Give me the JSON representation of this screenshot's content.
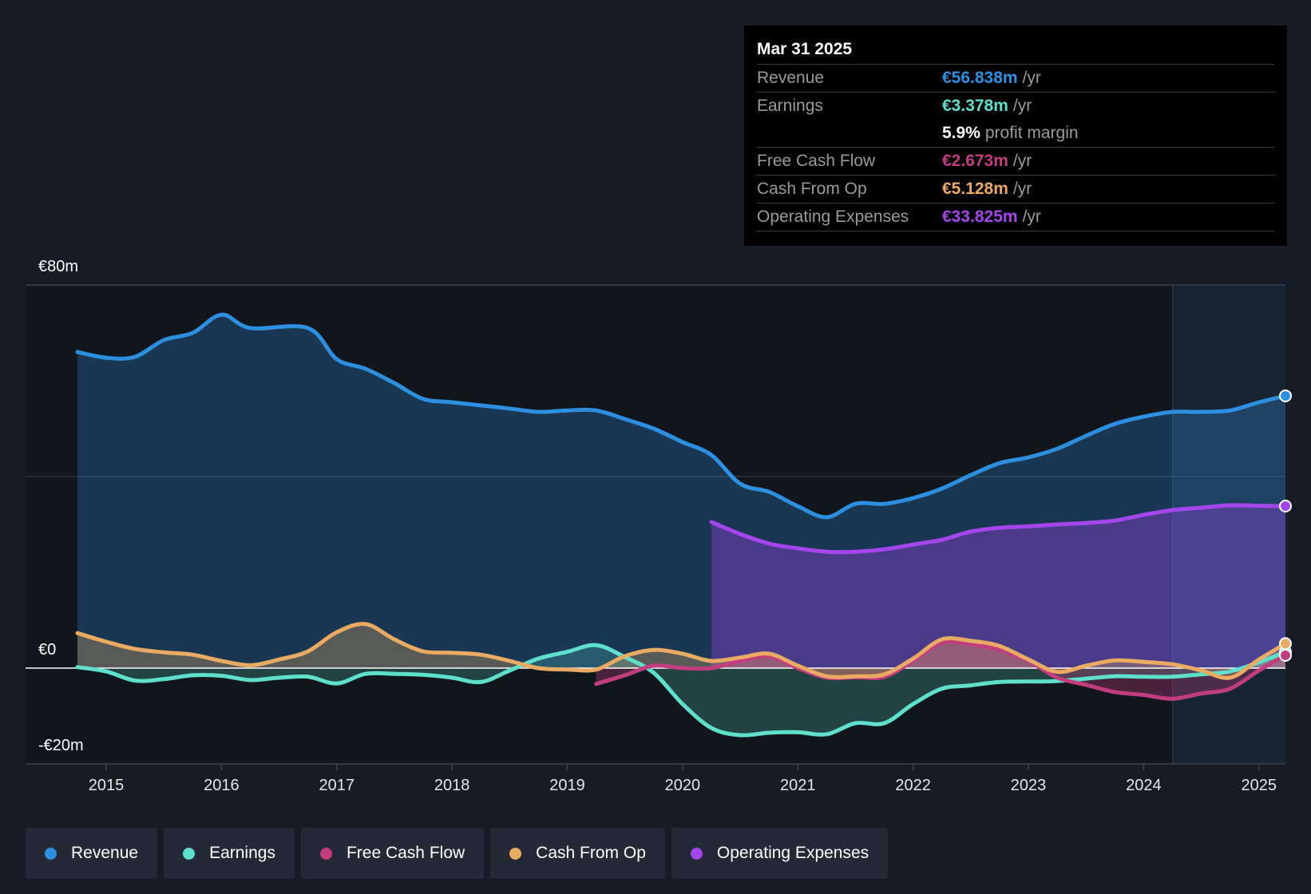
{
  "chart_data": {
    "type": "area",
    "currency_axis_labels": {
      "top": "€80m",
      "zero": "€0",
      "bottom": "-€20m"
    },
    "ylim": [
      -20,
      80
    ],
    "x_range": [
      2014.3,
      2025.23
    ],
    "x_ticks": [
      "2015",
      "2016",
      "2017",
      "2018",
      "2019",
      "2020",
      "2021",
      "2022",
      "2023",
      "2024",
      "2025"
    ],
    "highlight_from": 2024.25,
    "series": [
      {
        "name": "Revenue",
        "color": "#2d8fdf",
        "fill": true,
        "points": [
          [
            2014.75,
            66
          ],
          [
            2015.0,
            64.8
          ],
          [
            2015.25,
            65
          ],
          [
            2015.5,
            68.5
          ],
          [
            2015.75,
            70
          ],
          [
            2016.0,
            73.8
          ],
          [
            2016.25,
            71
          ],
          [
            2016.75,
            71
          ],
          [
            2017.0,
            64.5
          ],
          [
            2017.25,
            62.5
          ],
          [
            2017.5,
            59.5
          ],
          [
            2017.75,
            56.2
          ],
          [
            2018.0,
            55.5
          ],
          [
            2018.5,
            54.2
          ],
          [
            2018.75,
            53.5
          ],
          [
            2019.0,
            53.8
          ],
          [
            2019.25,
            53.8
          ],
          [
            2019.5,
            52
          ],
          [
            2019.75,
            50
          ],
          [
            2020.0,
            47.2
          ],
          [
            2020.25,
            44.5
          ],
          [
            2020.5,
            38.5
          ],
          [
            2020.75,
            36.8
          ],
          [
            2021.0,
            33.8
          ],
          [
            2021.25,
            31.5
          ],
          [
            2021.5,
            34.3
          ],
          [
            2021.75,
            34.3
          ],
          [
            2022.0,
            35.5
          ],
          [
            2022.25,
            37.5
          ],
          [
            2022.5,
            40.3
          ],
          [
            2022.75,
            42.8
          ],
          [
            2023.0,
            44
          ],
          [
            2023.25,
            45.8
          ],
          [
            2023.5,
            48.5
          ],
          [
            2023.75,
            51
          ],
          [
            2024.0,
            52.5
          ],
          [
            2024.25,
            53.5
          ],
          [
            2024.5,
            53.5
          ],
          [
            2024.75,
            53.8
          ],
          [
            2025.0,
            55.5
          ],
          [
            2025.23,
            56.84
          ]
        ]
      },
      {
        "name": "Operating Expenses",
        "color": "#a446ec",
        "fill": true,
        "points": [
          [
            2020.25,
            30.5
          ],
          [
            2020.5,
            28
          ],
          [
            2020.75,
            26
          ],
          [
            2021.0,
            25
          ],
          [
            2021.25,
            24.3
          ],
          [
            2021.5,
            24.3
          ],
          [
            2021.75,
            24.8
          ],
          [
            2022.0,
            25.8
          ],
          [
            2022.25,
            26.8
          ],
          [
            2022.5,
            28.5
          ],
          [
            2022.75,
            29.3
          ],
          [
            2023.0,
            29.6
          ],
          [
            2023.25,
            30
          ],
          [
            2023.5,
            30.3
          ],
          [
            2023.75,
            30.8
          ],
          [
            2024.0,
            32
          ],
          [
            2024.25,
            33
          ],
          [
            2024.5,
            33.5
          ],
          [
            2024.75,
            34
          ],
          [
            2025.0,
            33.9
          ],
          [
            2025.23,
            33.83
          ]
        ]
      },
      {
        "name": "Earnings",
        "color": "#5ee0cc",
        "fill": true,
        "points": [
          [
            2014.75,
            0.2
          ],
          [
            2015.0,
            -0.7
          ],
          [
            2015.25,
            -2.6
          ],
          [
            2015.5,
            -2.3
          ],
          [
            2015.75,
            -1.5
          ],
          [
            2016.0,
            -1.6
          ],
          [
            2016.25,
            -2.5
          ],
          [
            2016.5,
            -2
          ],
          [
            2016.75,
            -1.8
          ],
          [
            2017.0,
            -3.2
          ],
          [
            2017.25,
            -1.2
          ],
          [
            2017.5,
            -1.2
          ],
          [
            2017.75,
            -1.4
          ],
          [
            2018.0,
            -2
          ],
          [
            2018.25,
            -2.9
          ],
          [
            2018.5,
            -0.5
          ],
          [
            2018.75,
            2
          ],
          [
            2019.0,
            3.4
          ],
          [
            2019.25,
            4.8
          ],
          [
            2019.5,
            2.3
          ],
          [
            2019.75,
            -1
          ],
          [
            2020.0,
            -7.5
          ],
          [
            2020.25,
            -12.5
          ],
          [
            2020.5,
            -14
          ],
          [
            2020.75,
            -13.5
          ],
          [
            2021.0,
            -13.4
          ],
          [
            2021.25,
            -13.8
          ],
          [
            2021.5,
            -11.5
          ],
          [
            2021.75,
            -11.5
          ],
          [
            2022.0,
            -7.5
          ],
          [
            2022.25,
            -4.3
          ],
          [
            2022.5,
            -3.6
          ],
          [
            2022.75,
            -2.9
          ],
          [
            2023.0,
            -2.8
          ],
          [
            2023.25,
            -2.7
          ],
          [
            2023.5,
            -2.2
          ],
          [
            2023.75,
            -1.7
          ],
          [
            2024.0,
            -1.8
          ],
          [
            2024.25,
            -1.8
          ],
          [
            2024.5,
            -1.3
          ],
          [
            2024.75,
            -0.7
          ],
          [
            2025.0,
            1.2
          ],
          [
            2025.23,
            3.38
          ]
        ]
      },
      {
        "name": "Free Cash Flow",
        "color": "#c23d7f",
        "fill": true,
        "points": [
          [
            2019.25,
            -3.3
          ],
          [
            2019.5,
            -1.5
          ],
          [
            2019.75,
            0.5
          ],
          [
            2020.0,
            0
          ],
          [
            2020.25,
            0
          ],
          [
            2020.5,
            1.5
          ],
          [
            2020.75,
            2.5
          ],
          [
            2021.0,
            0
          ],
          [
            2021.25,
            -2
          ],
          [
            2021.5,
            -1.9
          ],
          [
            2021.75,
            -1.8
          ],
          [
            2022.0,
            1.5
          ],
          [
            2022.25,
            5.3
          ],
          [
            2022.5,
            5
          ],
          [
            2022.75,
            3.8
          ],
          [
            2023.0,
            1.5
          ],
          [
            2023.25,
            -2
          ],
          [
            2023.5,
            -3.5
          ],
          [
            2023.75,
            -5
          ],
          [
            2024.0,
            -5.6
          ],
          [
            2024.25,
            -6.4
          ],
          [
            2024.5,
            -5.3
          ],
          [
            2024.75,
            -4.3
          ],
          [
            2025.0,
            -0.5
          ],
          [
            2025.23,
            2.67
          ]
        ]
      },
      {
        "name": "Cash From Op",
        "color": "#e9ab62",
        "fill": true,
        "points": [
          [
            2014.75,
            7.3
          ],
          [
            2015.0,
            5.5
          ],
          [
            2015.25,
            4
          ],
          [
            2015.5,
            3.3
          ],
          [
            2015.75,
            2.8
          ],
          [
            2016.0,
            1.5
          ],
          [
            2016.25,
            0.6
          ],
          [
            2016.5,
            1.8
          ],
          [
            2016.75,
            3.5
          ],
          [
            2017.0,
            7.5
          ],
          [
            2017.25,
            9.2
          ],
          [
            2017.5,
            6
          ],
          [
            2017.75,
            3.5
          ],
          [
            2018.0,
            3.2
          ],
          [
            2018.25,
            2.8
          ],
          [
            2018.5,
            1.5
          ],
          [
            2018.75,
            0
          ],
          [
            2019.0,
            -0.3
          ],
          [
            2019.25,
            -0.3
          ],
          [
            2019.5,
            2.5
          ],
          [
            2019.75,
            3.8
          ],
          [
            2020.0,
            3
          ],
          [
            2020.25,
            1.5
          ],
          [
            2020.5,
            2.2
          ],
          [
            2020.75,
            3
          ],
          [
            2021.0,
            0.5
          ],
          [
            2021.25,
            -1.7
          ],
          [
            2021.5,
            -1.7
          ],
          [
            2021.75,
            -1.3
          ],
          [
            2022.0,
            2
          ],
          [
            2022.25,
            6
          ],
          [
            2022.5,
            5.7
          ],
          [
            2022.75,
            4.6
          ],
          [
            2023.0,
            1.8
          ],
          [
            2023.25,
            -0.8
          ],
          [
            2023.5,
            0.5
          ],
          [
            2023.75,
            1.6
          ],
          [
            2024.0,
            1.3
          ],
          [
            2024.25,
            0.8
          ],
          [
            2024.5,
            -0.5
          ],
          [
            2024.75,
            -2
          ],
          [
            2025.0,
            1.8
          ],
          [
            2025.23,
            5.13
          ]
        ]
      }
    ]
  },
  "tooltip": {
    "date": "Mar 31 2025",
    "rows": [
      {
        "label": "Revenue",
        "value": "€56.838m",
        "unit": "/yr",
        "color": "#2d8fdf"
      },
      {
        "label": "Earnings",
        "value": "€3.378m",
        "unit": "/yr",
        "color": "#5ee0cc"
      },
      {
        "label": "",
        "value": "5.9%",
        "unit": "profit margin",
        "color": "#ffffff"
      },
      {
        "label": "Free Cash Flow",
        "value": "€2.673m",
        "unit": "/yr",
        "color": "#c23d7f"
      },
      {
        "label": "Cash From Op",
        "value": "€5.128m",
        "unit": "/yr",
        "color": "#e9ab62"
      },
      {
        "label": "Operating Expenses",
        "value": "€33.825m",
        "unit": "/yr",
        "color": "#a446ec"
      }
    ]
  },
  "legend": [
    {
      "label": "Revenue",
      "color": "#2d8fdf"
    },
    {
      "label": "Earnings",
      "color": "#5ee0cc"
    },
    {
      "label": "Free Cash Flow",
      "color": "#c23d7f"
    },
    {
      "label": "Cash From Op",
      "color": "#e9ab62"
    },
    {
      "label": "Operating Expenses",
      "color": "#a446ec"
    }
  ]
}
